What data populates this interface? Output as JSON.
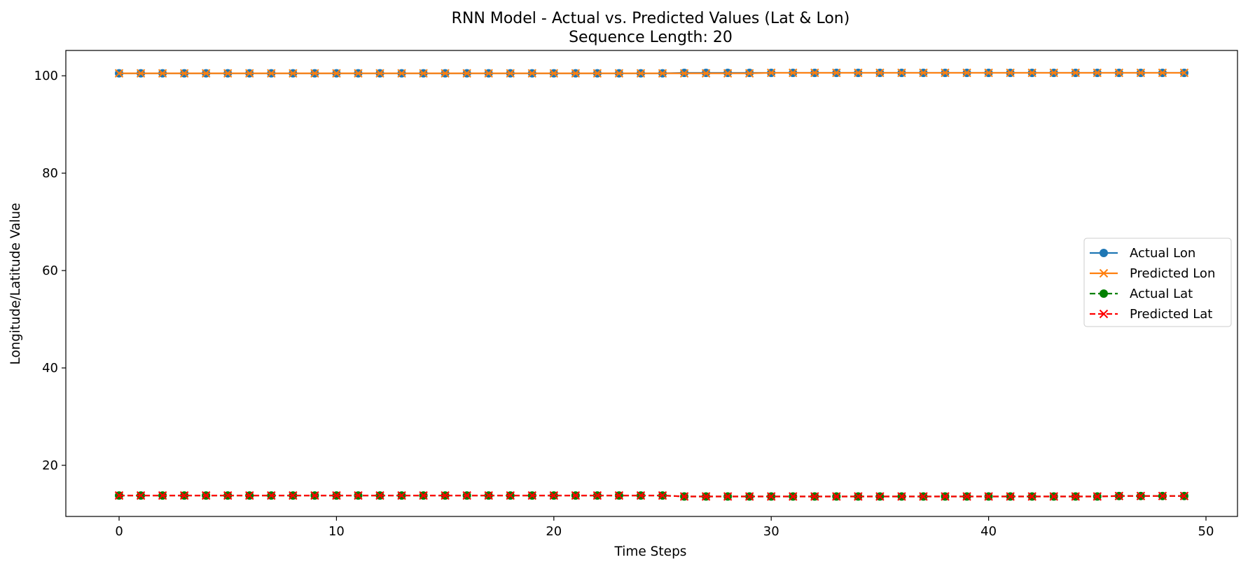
{
  "chart_data": {
    "type": "line",
    "title": "RNN Model - Actual vs. Predicted Values (Lat & Lon)",
    "subtitle": "Sequence Length: 20",
    "xlabel": "Time Steps",
    "ylabel": "Longitude/Latitude Value",
    "xlim": [
      -2.45,
      51.45
    ],
    "ylim": [
      9.5,
      105.2
    ],
    "xticks": [
      0,
      10,
      20,
      30,
      40,
      50
    ],
    "yticks": [
      20,
      40,
      60,
      80,
      100
    ],
    "grid": false,
    "legend_position": "center-right",
    "x": [
      0,
      1,
      2,
      3,
      4,
      5,
      6,
      7,
      8,
      9,
      10,
      11,
      12,
      13,
      14,
      15,
      16,
      17,
      18,
      19,
      20,
      21,
      22,
      23,
      24,
      25,
      26,
      27,
      28,
      29,
      30,
      31,
      32,
      33,
      34,
      35,
      36,
      37,
      38,
      39,
      40,
      41,
      42,
      43,
      44,
      45,
      46,
      47,
      48,
      49
    ],
    "series": [
      {
        "name": "Actual Lon",
        "color": "#1f77b4",
        "linestyle": "solid",
        "marker": "circle",
        "values": [
          100.5,
          100.5,
          100.5,
          100.5,
          100.5,
          100.5,
          100.5,
          100.5,
          100.5,
          100.5,
          100.5,
          100.5,
          100.5,
          100.5,
          100.5,
          100.5,
          100.5,
          100.5,
          100.5,
          100.5,
          100.5,
          100.5,
          100.5,
          100.5,
          100.5,
          100.5,
          100.6,
          100.6,
          100.6,
          100.6,
          100.6,
          100.6,
          100.6,
          100.6,
          100.6,
          100.6,
          100.6,
          100.6,
          100.6,
          100.6,
          100.6,
          100.6,
          100.6,
          100.6,
          100.6,
          100.6,
          100.6,
          100.6,
          100.6,
          100.6
        ]
      },
      {
        "name": "Predicted Lon",
        "color": "#ff7f0e",
        "linestyle": "solid",
        "marker": "x",
        "values": [
          100.5,
          100.5,
          100.5,
          100.5,
          100.5,
          100.5,
          100.5,
          100.5,
          100.5,
          100.5,
          100.5,
          100.5,
          100.5,
          100.5,
          100.5,
          100.5,
          100.5,
          100.5,
          100.5,
          100.5,
          100.5,
          100.5,
          100.5,
          100.5,
          100.5,
          100.5,
          100.5,
          100.5,
          100.5,
          100.5,
          100.6,
          100.6,
          100.6,
          100.6,
          100.6,
          100.6,
          100.6,
          100.6,
          100.6,
          100.6,
          100.6,
          100.6,
          100.6,
          100.6,
          100.6,
          100.6,
          100.6,
          100.6,
          100.6,
          100.6
        ]
      },
      {
        "name": "Actual Lat",
        "color": "#008000",
        "linestyle": "dashed",
        "marker": "circle",
        "values": [
          13.8,
          13.8,
          13.8,
          13.8,
          13.8,
          13.8,
          13.8,
          13.8,
          13.8,
          13.8,
          13.8,
          13.8,
          13.8,
          13.8,
          13.8,
          13.8,
          13.8,
          13.8,
          13.8,
          13.8,
          13.8,
          13.8,
          13.8,
          13.8,
          13.8,
          13.8,
          13.6,
          13.6,
          13.6,
          13.6,
          13.6,
          13.6,
          13.6,
          13.6,
          13.6,
          13.6,
          13.6,
          13.6,
          13.6,
          13.6,
          13.6,
          13.6,
          13.6,
          13.6,
          13.6,
          13.6,
          13.7,
          13.7,
          13.7,
          13.7
        ]
      },
      {
        "name": "Predicted Lat",
        "color": "#ff0000",
        "linestyle": "dashed",
        "marker": "x",
        "values": [
          13.8,
          13.8,
          13.8,
          13.8,
          13.8,
          13.8,
          13.8,
          13.8,
          13.8,
          13.8,
          13.8,
          13.8,
          13.8,
          13.8,
          13.8,
          13.8,
          13.8,
          13.8,
          13.8,
          13.8,
          13.8,
          13.8,
          13.8,
          13.8,
          13.8,
          13.8,
          13.6,
          13.6,
          13.6,
          13.6,
          13.6,
          13.6,
          13.6,
          13.6,
          13.6,
          13.6,
          13.6,
          13.6,
          13.6,
          13.6,
          13.6,
          13.6,
          13.6,
          13.6,
          13.6,
          13.6,
          13.7,
          13.7,
          13.7,
          13.7
        ]
      }
    ]
  }
}
